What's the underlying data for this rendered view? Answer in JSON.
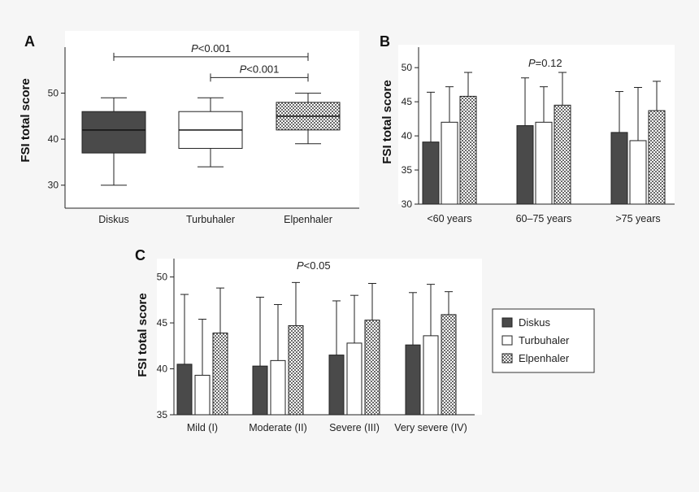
{
  "colors": {
    "diskus": "#4a4a4a",
    "turbuhaler": "#ffffff",
    "elpenhaler": "pattern:checker",
    "plot_bg": "#ffffff",
    "page_bg": "#f6f6f6"
  },
  "legend": {
    "placement": "right",
    "items": [
      "Diskus",
      "Turbuhaler",
      "Elpenhaler"
    ]
  },
  "chart_data": [
    {
      "panel": "A",
      "type": "box",
      "ylabel": "FSI total score",
      "ylim": [
        25,
        60
      ],
      "yticks": [
        30,
        40,
        50
      ],
      "categories": [
        "Diskus",
        "Turbuhaler",
        "Elpenhaler"
      ],
      "boxes": [
        {
          "name": "Diskus",
          "min": 30,
          "q1": 37,
          "median": 42,
          "q3": 46,
          "max": 49
        },
        {
          "name": "Turbuhaler",
          "min": 34,
          "q1": 38,
          "median": 42,
          "q3": 46,
          "max": 49
        },
        {
          "name": "Elpenhaler",
          "min": 39,
          "q1": 42,
          "median": 45,
          "q3": 48,
          "max": 50
        }
      ],
      "brackets": [
        {
          "from": "Diskus",
          "to": "Elpenhaler",
          "y": 57.9,
          "p": "P",
          "text": "<0.001"
        },
        {
          "from": "Turbuhaler",
          "to": "Elpenhaler",
          "y": 53.4,
          "p": "P",
          "text": "<0.001"
        }
      ]
    },
    {
      "panel": "B",
      "type": "bar",
      "ylabel": "FSI total score",
      "ylim": [
        30,
        53
      ],
      "yticks": [
        30,
        35,
        40,
        45,
        50
      ],
      "categories": [
        "<60 years",
        "60–75 years",
        ">75 years"
      ],
      "annotation": {
        "p": "P",
        "text": "=0.12"
      },
      "series": [
        {
          "name": "Diskus",
          "values": [
            39.1,
            41.5,
            40.5
          ],
          "err": [
            7.3,
            7.0,
            6.0
          ]
        },
        {
          "name": "Turbuhaler",
          "values": [
            42.0,
            42.0,
            39.3
          ],
          "err": [
            5.2,
            5.2,
            7.8
          ]
        },
        {
          "name": "Elpenhaler",
          "values": [
            45.8,
            44.5,
            43.7
          ],
          "err": [
            3.5,
            4.8,
            4.3
          ]
        }
      ]
    },
    {
      "panel": "C",
      "type": "bar",
      "ylabel": "FSI total score",
      "ylim": [
        35,
        52
      ],
      "yticks": [
        35,
        40,
        45,
        50
      ],
      "categories": [
        "Mild (I)",
        "Moderate (II)",
        "Severe (III)",
        "Very severe (IV)"
      ],
      "annotation": {
        "p": "P",
        "text": "<0.05"
      },
      "series": [
        {
          "name": "Diskus",
          "values": [
            40.5,
            40.3,
            41.5,
            42.6
          ],
          "err": [
            7.6,
            7.5,
            5.9,
            5.7
          ]
        },
        {
          "name": "Turbuhaler",
          "values": [
            39.3,
            40.9,
            42.8,
            43.6
          ],
          "err": [
            6.1,
            6.1,
            5.2,
            5.6
          ]
        },
        {
          "name": "Elpenhaler",
          "values": [
            43.9,
            44.7,
            45.3,
            45.9
          ],
          "err": [
            4.9,
            4.7,
            4.0,
            2.5
          ]
        }
      ]
    }
  ]
}
